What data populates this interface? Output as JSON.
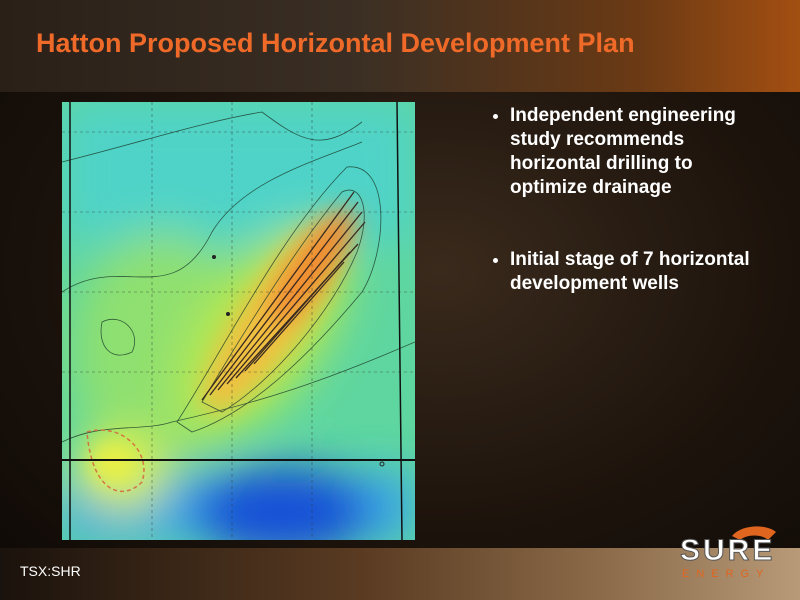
{
  "header": {
    "title": "Hatton Proposed Horizontal Development Plan"
  },
  "bullets": [
    "Independent engineering study recommends horizontal drilling to optimize drainage",
    "Initial stage of 7 horizontal development wells"
  ],
  "footer": {
    "ticker": "TSX:SHR"
  },
  "logo": {
    "name": "SURE",
    "tagline": "ENERGY"
  }
}
